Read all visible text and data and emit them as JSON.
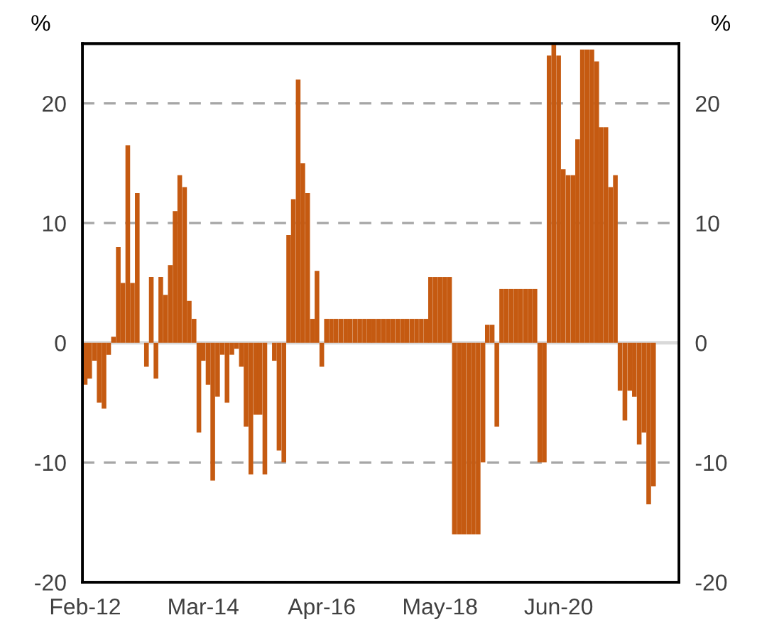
{
  "chart_data": {
    "type": "bar",
    "ylabel": "%",
    "y2label": "%",
    "x": [
      "2012-02",
      "2012-03",
      "2012-04",
      "2012-05",
      "2012-06",
      "2012-07",
      "2012-08",
      "2012-09",
      "2012-10",
      "2012-11",
      "2012-12",
      "2013-01",
      "2013-02",
      "2013-03",
      "2013-04",
      "2013-05",
      "2013-06",
      "2013-07",
      "2013-08",
      "2013-09",
      "2013-10",
      "2013-11",
      "2013-12",
      "2014-01",
      "2014-02",
      "2014-03",
      "2014-04",
      "2014-05",
      "2014-06",
      "2014-07",
      "2014-08",
      "2014-09",
      "2014-10",
      "2014-11",
      "2014-12",
      "2015-01",
      "2015-02",
      "2015-03",
      "2015-04",
      "2015-05",
      "2015-06",
      "2015-07",
      "2015-08",
      "2015-09",
      "2015-10",
      "2015-11",
      "2015-12",
      "2016-01",
      "2016-02",
      "2016-03",
      "2016-04",
      "2016-05",
      "2016-06",
      "2016-07",
      "2016-08",
      "2016-09",
      "2016-10",
      "2016-11",
      "2016-12",
      "2017-01",
      "2017-02",
      "2017-03",
      "2017-04",
      "2017-05",
      "2017-06",
      "2017-07",
      "2017-08",
      "2017-09",
      "2017-10",
      "2017-11",
      "2017-12",
      "2018-01",
      "2018-02",
      "2018-03",
      "2018-04",
      "2018-05",
      "2018-06",
      "2018-07",
      "2018-08",
      "2018-09",
      "2018-10",
      "2018-11",
      "2018-12",
      "2019-01",
      "2019-02",
      "2019-03",
      "2019-04",
      "2019-05",
      "2019-06",
      "2019-07",
      "2019-08",
      "2019-09",
      "2019-10",
      "2019-11",
      "2019-12",
      "2020-01",
      "2020-02",
      "2020-03",
      "2020-04",
      "2020-05",
      "2020-06",
      "2020-07",
      "2020-08",
      "2020-09",
      "2020-10",
      "2020-11",
      "2020-12",
      "2021-01",
      "2021-02",
      "2021-03",
      "2021-04",
      "2021-05",
      "2021-06",
      "2021-07",
      "2021-08",
      "2021-09",
      "2021-10",
      "2021-11",
      "2021-12",
      "2022-01",
      "2022-02"
    ],
    "series": [
      {
        "color": "#c55a11",
        "values": [
          -3.5,
          -3,
          -1.5,
          -5,
          -5.5,
          -1,
          0.5,
          8,
          5,
          16.5,
          5,
          12.5,
          0,
          -2,
          5.5,
          -3,
          5.5,
          4,
          6.5,
          11,
          14,
          13,
          3.5,
          2,
          -7.5,
          -1.5,
          -3.5,
          -11.5,
          -4.5,
          -1,
          -5,
          -1,
          -0.5,
          -2,
          -7,
          -11,
          -6,
          -6,
          -11,
          0,
          -1.5,
          -9,
          -10,
          9,
          12,
          22,
          15,
          12.5,
          2,
          6,
          -2,
          2,
          2,
          2,
          2,
          2,
          2,
          2,
          2,
          2,
          2,
          2,
          2,
          2,
          2,
          2,
          2,
          2,
          2,
          2,
          2,
          2,
          2,
          5.5,
          5.5,
          5.5,
          5.5,
          5.5,
          -16,
          -16,
          -16,
          -16,
          -16,
          -16,
          -10,
          1.5,
          1.5,
          -7,
          4.5,
          4.5,
          4.5,
          4.5,
          4.5,
          4.5,
          4.5,
          4.5,
          -10,
          -10,
          24,
          25,
          24,
          14.5,
          14,
          14,
          17,
          24.5,
          24.5,
          24.5,
          23.5,
          18,
          18,
          13,
          14,
          -4,
          -6.5,
          -4,
          -4.5,
          -8.5,
          -7.5,
          -13.5,
          -12
        ]
      }
    ],
    "xlim": [
      "2012-01-15",
      "2022-07-15"
    ],
    "xticks": [
      {
        "value": "2012-02",
        "label": "Feb-12"
      },
      {
        "value": "2014-03",
        "label": "Mar-14"
      },
      {
        "value": "2016-04",
        "label": "Apr-16"
      },
      {
        "value": "2018-05",
        "label": "May-18"
      },
      {
        "value": "2020-06",
        "label": "Jun-20"
      }
    ],
    "ylim": [
      -20,
      25
    ],
    "yticks": [
      -20,
      -10,
      0,
      10,
      20
    ],
    "y2lim": [
      -20,
      25
    ],
    "y2ticks": [
      -20,
      -10,
      0,
      10,
      20
    ],
    "grid": "y",
    "ref_lines": [
      {
        "axis": "y",
        "value": 0,
        "color": "#d9d9d9",
        "line_style": "solid"
      }
    ]
  }
}
